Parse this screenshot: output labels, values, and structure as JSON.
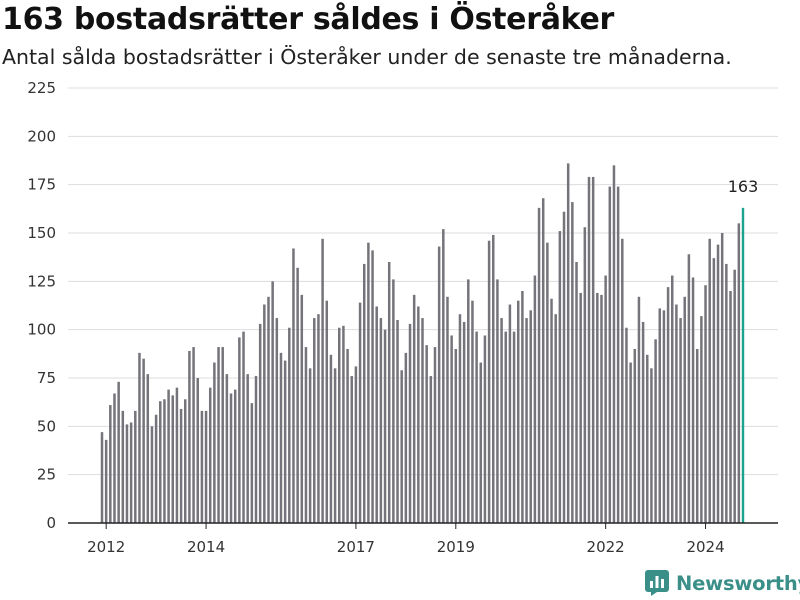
{
  "header": {
    "title": "163 bostadsrätter såldes i Österåker",
    "subtitle": "Antal sålda bostadsrätter i Österåker under de senaste tre månaderna."
  },
  "brand": {
    "name": "Newsworthy",
    "color": "#3a8f88"
  },
  "colors": {
    "bar": "#74747a",
    "highlight": "#1aa38e",
    "grid": "#dddddd",
    "axis": "#222222"
  },
  "chart_data": {
    "type": "bar",
    "x_start": "2011-12",
    "x_end": "2024-12",
    "values": [
      47,
      43,
      61,
      67,
      73,
      58,
      51,
      52,
      58,
      88,
      85,
      77,
      50,
      56,
      63,
      64,
      69,
      66,
      70,
      59,
      64,
      89,
      91,
      75,
      58,
      58,
      70,
      83,
      91,
      91,
      77,
      67,
      69,
      96,
      99,
      77,
      62,
      76,
      103,
      113,
      117,
      125,
      106,
      88,
      84,
      101,
      142,
      132,
      118,
      91,
      80,
      106,
      108,
      147,
      115,
      87,
      80,
      101,
      102,
      90,
      76,
      81,
      114,
      134,
      145,
      141,
      112,
      106,
      100,
      135,
      126,
      105,
      79,
      88,
      103,
      118,
      112,
      106,
      92,
      76,
      91,
      143,
      152,
      117,
      97,
      90,
      108,
      104,
      126,
      115,
      99,
      83,
      97,
      146,
      149,
      126,
      106,
      99,
      113,
      99,
      115,
      120,
      106,
      110,
      128,
      163,
      168,
      145,
      116,
      108,
      151,
      161,
      186,
      166,
      135,
      119,
      153,
      179,
      179,
      119,
      118,
      128,
      174,
      185,
      174,
      147,
      101,
      83,
      90,
      117,
      104,
      87,
      80,
      95,
      111,
      110,
      122,
      128,
      113,
      106,
      117,
      139,
      127,
      90,
      107,
      123,
      147,
      137,
      144,
      150,
      134,
      120,
      131,
      155,
      163
    ],
    "highlight_last": true,
    "annotation": "163",
    "x_ticks": [
      "2012",
      "2014",
      "2017",
      "2019",
      "2022",
      "2024"
    ],
    "y_ticks": [
      0,
      25,
      50,
      75,
      100,
      125,
      150,
      175,
      200,
      225
    ],
    "ylim": [
      0,
      225
    ],
    "grid": true
  }
}
